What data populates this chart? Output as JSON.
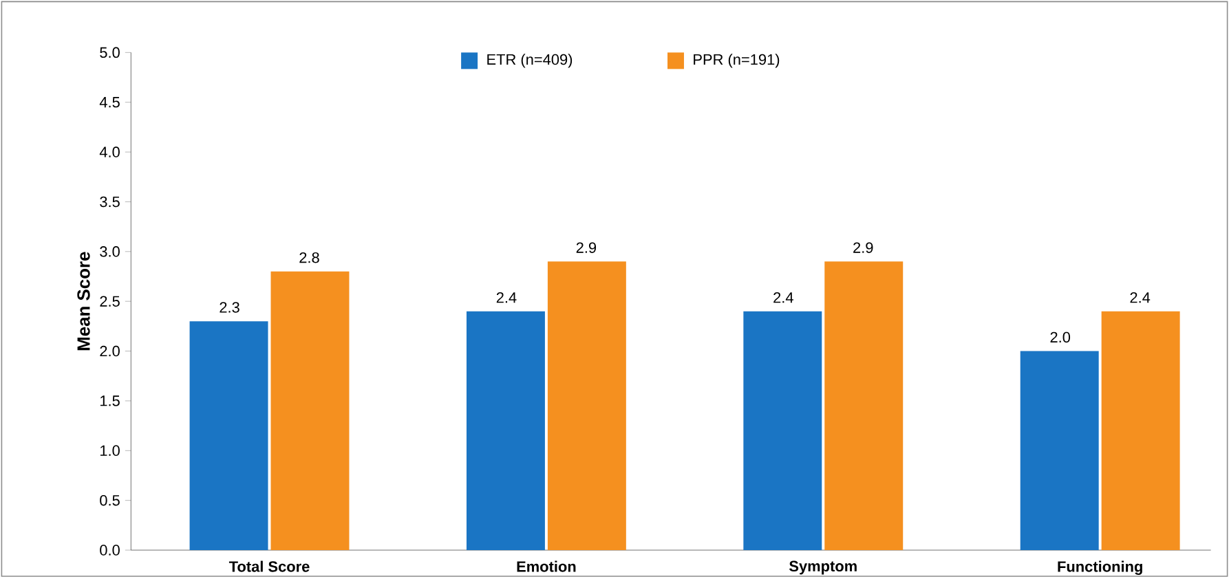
{
  "chart_data": {
    "type": "bar",
    "ylabel": "Mean Score",
    "categories": [
      "Total Score",
      "Emotion",
      "Symptom",
      "Functioning"
    ],
    "series": [
      {
        "name": "ETR (n=409)",
        "color": "#1a75c4",
        "values": [
          2.3,
          2.4,
          2.4,
          2.0
        ],
        "value_labels": [
          "2.3",
          "2.4",
          "2.4",
          "2.0"
        ]
      },
      {
        "name": "PPR (n=191)",
        "color": "#f5901f",
        "values": [
          2.8,
          2.9,
          2.9,
          2.4
        ],
        "value_labels": [
          "2.8",
          "2.9",
          "2.9",
          "2.4"
        ]
      }
    ],
    "ylim": [
      0,
      5
    ],
    "yticks": [
      {
        "value": 0,
        "label": "0.0"
      },
      {
        "value": 0.5,
        "label": "0.5"
      },
      {
        "value": 1,
        "label": "1.0"
      },
      {
        "value": 1.5,
        "label": "1.5"
      },
      {
        "value": 2,
        "label": "2.0"
      },
      {
        "value": 2.5,
        "label": "2.5"
      },
      {
        "value": 3,
        "label": "3.0"
      },
      {
        "value": 3.5,
        "label": "3.5"
      },
      {
        "value": 4,
        "label": "4.0"
      },
      {
        "value": 4.5,
        "label": "4.5"
      },
      {
        "value": 5,
        "label": "5.0"
      }
    ],
    "legend": "top",
    "grid": false
  }
}
